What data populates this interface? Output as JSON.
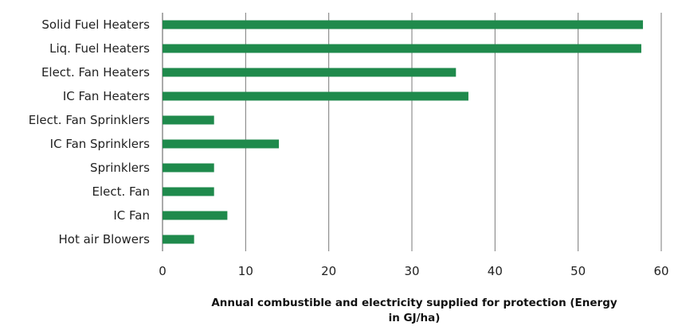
{
  "chart_data": {
    "type": "bar",
    "orientation": "horizontal",
    "categories": [
      "Solid Fuel Heaters",
      "Liq. Fuel Heaters",
      "Elect. Fan Heaters",
      "IC Fan Heaters",
      "Elect. Fan Sprinklers",
      "IC Fan Sprinklers",
      "Sprinklers",
      "Elect. Fan",
      "IC Fan",
      "Hot air Blowers"
    ],
    "values": [
      57.8,
      57.6,
      35.3,
      36.8,
      6.2,
      14.0,
      6.2,
      6.2,
      7.8,
      3.8
    ],
    "title": "",
    "xlabel_line1": "Annual combustible and electricity supplied for protection (Energy",
    "xlabel_line2": "in GJ/ha)",
    "ylabel": "",
    "xlim": [
      0,
      60
    ],
    "xticks": [
      0,
      10,
      20,
      30,
      40,
      50,
      60
    ],
    "xtick_labels": [
      "0",
      "10",
      "20",
      "30",
      "40",
      "50",
      "60"
    ],
    "grid": "vertical",
    "legend": "none",
    "bar_color": "#1f8a4c",
    "grid_color": "#7a7a7a"
  }
}
